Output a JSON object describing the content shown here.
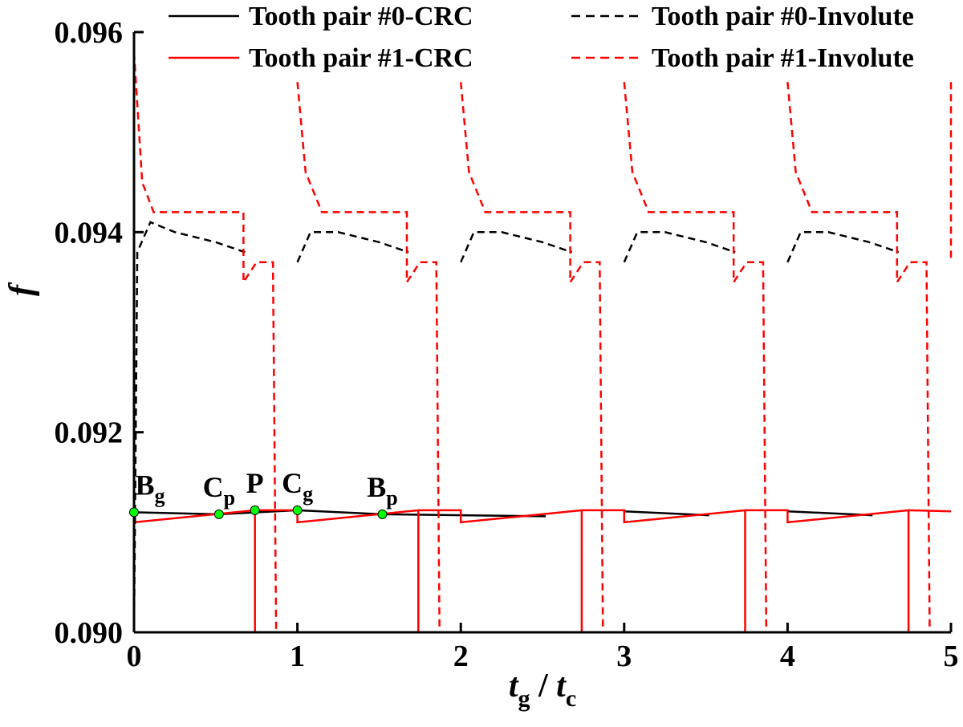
{
  "chart_data": {
    "type": "line",
    "xlabel": {
      "main": "t",
      "sub": "g",
      "sep": " / ",
      "main2": "t",
      "sub2": "c"
    },
    "ylabel": "f",
    "xlim": [
      0,
      5
    ],
    "ylim": [
      0.09,
      0.096
    ],
    "xticks": [
      0,
      1,
      2,
      3,
      4,
      5
    ],
    "xtick_labels": [
      "0",
      "1",
      "2",
      "3",
      "4",
      "5"
    ],
    "yticks": [
      0.09,
      0.092,
      0.094,
      0.096
    ],
    "ytick_labels": [
      "0.090",
      "0.092",
      "0.094",
      "0.096"
    ],
    "grid": false,
    "legend_position": "top",
    "colors": {
      "black": "#000000",
      "red": "#ff0000",
      "marker": "#00ff00"
    },
    "legend": [
      {
        "label": "Tooth pair #0-CRC",
        "color": "#000000",
        "dash": "solid"
      },
      {
        "label": "Tooth pair #1-CRC",
        "color": "#ff0000",
        "dash": "solid"
      },
      {
        "label": "Tooth pair #0-Involute",
        "color": "#000000",
        "dash": "dashed"
      },
      {
        "label": "Tooth pair #1-Involute",
        "color": "#ff0000",
        "dash": "dashed"
      }
    ],
    "series": [
      {
        "name": "Tooth pair #0-CRC",
        "color": "#000000",
        "dash": "solid",
        "segments": [
          [
            [
              0.0,
              0.0912
            ],
            [
              0.52,
              0.09118
            ],
            [
              1.0,
              0.09122
            ],
            [
              1.52,
              0.09118
            ],
            [
              2.52,
              0.09116
            ]
          ],
          [
            [
              3.0,
              0.09121
            ],
            [
              3.52,
              0.09117
            ]
          ],
          [
            [
              4.0,
              0.09121
            ],
            [
              4.52,
              0.09117
            ]
          ]
        ]
      },
      {
        "name": "Tooth pair #1-CRC",
        "color": "#ff0000",
        "dash": "solid",
        "segments": [
          [
            [
              0.0,
              0.09
            ],
            [
              0.0,
              0.0911
            ],
            [
              0.74,
              0.09122
            ],
            [
              0.74,
              0.09
            ],
            [
              0.74,
              0.09122
            ],
            [
              1.0,
              0.09122
            ],
            [
              1.0,
              0.0911
            ],
            [
              1.74,
              0.09122
            ],
            [
              1.74,
              0.09
            ],
            [
              1.74,
              0.09122
            ],
            [
              2.0,
              0.09122
            ],
            [
              2.0,
              0.0911
            ],
            [
              2.74,
              0.09122
            ],
            [
              2.74,
              0.09
            ],
            [
              2.74,
              0.09122
            ],
            [
              3.0,
              0.09122
            ],
            [
              3.0,
              0.0911
            ],
            [
              3.74,
              0.09122
            ],
            [
              3.74,
              0.09
            ],
            [
              3.74,
              0.09122
            ],
            [
              4.0,
              0.09122
            ],
            [
              4.0,
              0.0911
            ],
            [
              4.74,
              0.09122
            ],
            [
              4.74,
              0.09
            ],
            [
              4.74,
              0.09122
            ],
            [
              5.0,
              0.09121
            ]
          ]
        ]
      },
      {
        "name": "Tooth pair #0-Involute",
        "color": "#000000",
        "dash": "dashed",
        "segments": [
          [
            [
              0.0,
              0.09
            ],
            [
              0.02,
              0.0938
            ],
            [
              0.1,
              0.0941
            ],
            [
              0.25,
              0.094
            ],
            [
              0.5,
              0.0939
            ],
            [
              0.68,
              0.0938
            ]
          ],
          [
            [
              1.0,
              0.0937
            ],
            [
              1.08,
              0.094
            ],
            [
              1.25,
              0.094
            ],
            [
              1.5,
              0.0939
            ],
            [
              1.68,
              0.0938
            ]
          ],
          [
            [
              2.0,
              0.0937
            ],
            [
              2.08,
              0.094
            ],
            [
              2.25,
              0.094
            ],
            [
              2.5,
              0.0939
            ],
            [
              2.68,
              0.0938
            ]
          ],
          [
            [
              3.0,
              0.0937
            ],
            [
              3.08,
              0.094
            ],
            [
              3.25,
              0.094
            ],
            [
              3.5,
              0.0939
            ],
            [
              3.68,
              0.0938
            ]
          ],
          [
            [
              4.0,
              0.0937
            ],
            [
              4.08,
              0.094
            ],
            [
              4.25,
              0.094
            ],
            [
              4.5,
              0.0939
            ],
            [
              4.68,
              0.0938
            ]
          ]
        ]
      },
      {
        "name": "Tooth pair #1-Involute",
        "color": "#ff0000",
        "dash": "dashed",
        "segments": [
          [
            [
              0.0,
              0.0958
            ],
            [
              0.05,
              0.0945
            ],
            [
              0.12,
              0.0942
            ],
            [
              0.5,
              0.0942
            ],
            [
              0.67,
              0.0942
            ],
            [
              0.67,
              0.0935
            ],
            [
              0.75,
              0.0937
            ],
            [
              0.85,
              0.0937
            ],
            [
              0.87,
              0.09
            ]
          ],
          [
            [
              1.0,
              0.0955
            ],
            [
              1.05,
              0.0946
            ],
            [
              1.15,
              0.0942
            ],
            [
              1.67,
              0.0942
            ],
            [
              1.67,
              0.0935
            ],
            [
              1.75,
              0.0937
            ],
            [
              1.85,
              0.0937
            ],
            [
              1.87,
              0.09
            ]
          ],
          [
            [
              2.0,
              0.0955
            ],
            [
              2.05,
              0.0946
            ],
            [
              2.15,
              0.0942
            ],
            [
              2.67,
              0.0942
            ],
            [
              2.67,
              0.0935
            ],
            [
              2.75,
              0.0937
            ],
            [
              2.85,
              0.0937
            ],
            [
              2.87,
              0.09
            ]
          ],
          [
            [
              3.0,
              0.0955
            ],
            [
              3.05,
              0.0946
            ],
            [
              3.15,
              0.0942
            ],
            [
              3.67,
              0.0942
            ],
            [
              3.67,
              0.0935
            ],
            [
              3.75,
              0.0937
            ],
            [
              3.85,
              0.0937
            ],
            [
              3.87,
              0.09
            ]
          ],
          [
            [
              4.0,
              0.0955
            ],
            [
              4.05,
              0.0946
            ],
            [
              4.15,
              0.0942
            ],
            [
              4.67,
              0.0942
            ],
            [
              4.67,
              0.0935
            ],
            [
              4.75,
              0.0937
            ],
            [
              4.85,
              0.0937
            ],
            [
              4.87,
              0.09
            ]
          ],
          [
            [
              5.0,
              0.0955
            ],
            [
              5.0,
              0.0937
            ]
          ]
        ]
      }
    ],
    "annotations": [
      {
        "label": "B",
        "sub": "g",
        "x": 0.0,
        "y": 0.0912
      },
      {
        "label": "C",
        "sub": "p",
        "x": 0.52,
        "y": 0.09118
      },
      {
        "label": "P",
        "sub": "",
        "x": 0.74,
        "y": 0.09122
      },
      {
        "label": "C",
        "sub": "g",
        "x": 1.0,
        "y": 0.09122
      },
      {
        "label": "B",
        "sub": "p",
        "x": 1.52,
        "y": 0.09118
      }
    ]
  }
}
